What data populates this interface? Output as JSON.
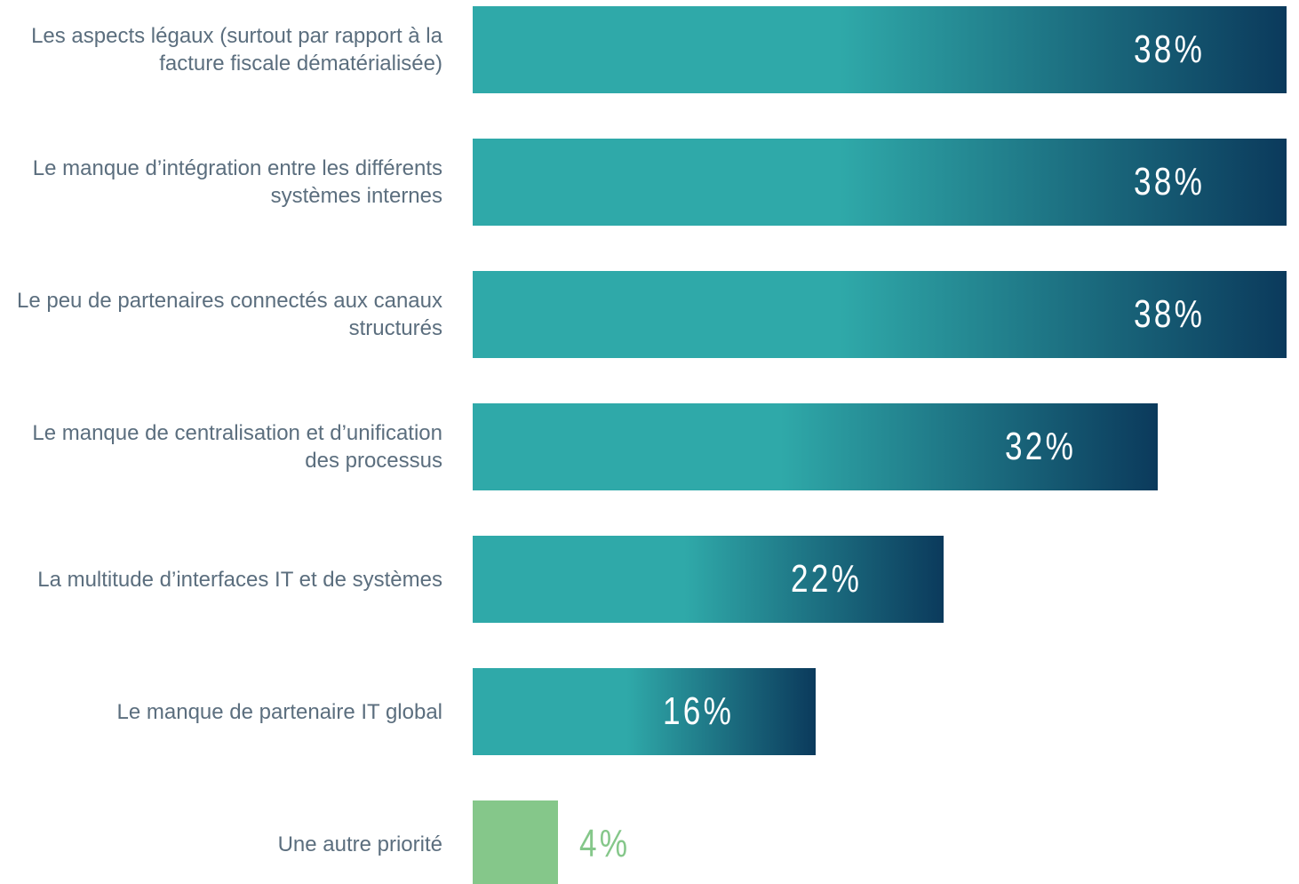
{
  "chart_data": {
    "type": "bar",
    "orientation": "horizontal",
    "categories": [
      "Les aspects légaux (surtout par rapport à la facture fiscale dématérialisée)",
      "Le manque d’intégration entre les différents systèmes internes",
      "Le peu de partenaires connectés aux canaux structurés",
      "Le manque de centralisation et d’unification des processus",
      "La multitude d’interfaces IT et de systèmes",
      "Le manque de partenaire IT global",
      "Une autre priorité"
    ],
    "values": [
      38,
      38,
      38,
      32,
      22,
      16,
      4
    ],
    "value_labels": [
      "38%",
      "38%",
      "38%",
      "32%",
      "22%",
      "16%",
      "4%"
    ],
    "colors": [
      "#2fa9a9",
      "#2fa9a9",
      "#2fa9a9",
      "#2fa9a9",
      "#2fa9a9",
      "#2fa9a9",
      "#85c78a"
    ],
    "gradient_end": "#0b3a5c"
  }
}
